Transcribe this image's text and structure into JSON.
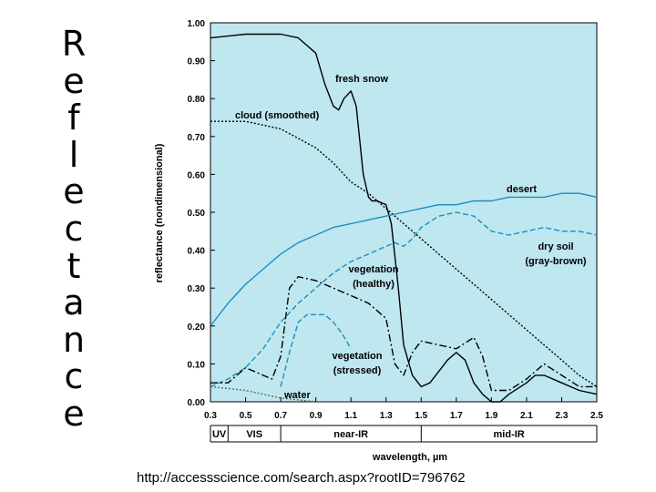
{
  "slide": {
    "title_letters": [
      "R",
      "e",
      "f",
      "l",
      "e",
      "c",
      "t",
      "a",
      "n",
      "c",
      "e"
    ],
    "source_url": "http://accessscience.com/search.aspx?rootID=796762"
  },
  "chart_data": {
    "type": "line",
    "title": "",
    "xlabel": "wavelength, µm",
    "ylabel": "reflectance (nondimensional)",
    "xlim": [
      0.3,
      2.5
    ],
    "ylim": [
      0.0,
      1.0
    ],
    "x_ticks": [
      "0.3",
      "0.5",
      "0.7",
      "0.9",
      "1.1",
      "1.3",
      "1.5",
      "1.7",
      "1.9",
      "2.1",
      "2.3",
      "2.5"
    ],
    "y_ticks": [
      "0.00",
      "0.10",
      "0.20",
      "0.30",
      "0.40",
      "0.50",
      "0.60",
      "0.70",
      "0.80",
      "0.90",
      "1.00"
    ],
    "bands": [
      {
        "label": "UV",
        "from": 0.3,
        "to": 0.4
      },
      {
        "label": "VIS",
        "from": 0.4,
        "to": 0.7
      },
      {
        "label": "near-IR",
        "from": 0.7,
        "to": 1.5
      },
      {
        "label": "mid-IR",
        "from": 1.5,
        "to": 2.5
      }
    ],
    "series": [
      {
        "name": "fresh snow",
        "label_lines": [
          "fresh snow"
        ],
        "color": "#000000",
        "style": "solid",
        "points": [
          [
            0.3,
            0.96
          ],
          [
            0.5,
            0.97
          ],
          [
            0.7,
            0.97
          ],
          [
            0.8,
            0.96
          ],
          [
            0.9,
            0.92
          ],
          [
            0.95,
            0.84
          ],
          [
            1.0,
            0.78
          ],
          [
            1.03,
            0.77
          ],
          [
            1.06,
            0.8
          ],
          [
            1.1,
            0.82
          ],
          [
            1.13,
            0.78
          ],
          [
            1.17,
            0.6
          ],
          [
            1.2,
            0.54
          ],
          [
            1.22,
            0.53
          ],
          [
            1.25,
            0.53
          ],
          [
            1.3,
            0.52
          ],
          [
            1.33,
            0.47
          ],
          [
            1.37,
            0.3
          ],
          [
            1.4,
            0.15
          ],
          [
            1.45,
            0.07
          ],
          [
            1.5,
            0.04
          ],
          [
            1.55,
            0.05
          ],
          [
            1.65,
            0.11
          ],
          [
            1.7,
            0.13
          ],
          [
            1.75,
            0.11
          ],
          [
            1.8,
            0.05
          ],
          [
            1.85,
            0.02
          ],
          [
            1.9,
            0.0
          ],
          [
            1.95,
            0.0
          ],
          [
            2.0,
            0.02
          ],
          [
            2.1,
            0.05
          ],
          [
            2.15,
            0.07
          ],
          [
            2.2,
            0.07
          ],
          [
            2.3,
            0.05
          ],
          [
            2.4,
            0.03
          ],
          [
            2.5,
            0.02
          ]
        ]
      },
      {
        "name": "cloud (smoothed)",
        "label_lines": [
          "cloud (smoothed)"
        ],
        "color": "#000000",
        "style": "dotted",
        "points": [
          [
            0.3,
            0.74
          ],
          [
            0.5,
            0.74
          ],
          [
            0.7,
            0.72
          ],
          [
            0.9,
            0.67
          ],
          [
            1.0,
            0.63
          ],
          [
            1.1,
            0.58
          ],
          [
            1.2,
            0.55
          ],
          [
            1.3,
            0.51
          ],
          [
            1.4,
            0.47
          ],
          [
            1.5,
            0.43
          ],
          [
            1.6,
            0.39
          ],
          [
            1.7,
            0.35
          ],
          [
            1.8,
            0.31
          ],
          [
            1.9,
            0.27
          ],
          [
            2.0,
            0.23
          ],
          [
            2.1,
            0.19
          ],
          [
            2.2,
            0.15
          ],
          [
            2.3,
            0.11
          ],
          [
            2.4,
            0.07
          ],
          [
            2.5,
            0.04
          ]
        ]
      },
      {
        "name": "desert",
        "label_lines": [
          "desert"
        ],
        "color": "#1a8ec0",
        "style": "solid",
        "points": [
          [
            0.3,
            0.2
          ],
          [
            0.4,
            0.26
          ],
          [
            0.5,
            0.31
          ],
          [
            0.6,
            0.35
          ],
          [
            0.7,
            0.39
          ],
          [
            0.8,
            0.42
          ],
          [
            0.9,
            0.44
          ],
          [
            1.0,
            0.46
          ],
          [
            1.1,
            0.47
          ],
          [
            1.2,
            0.48
          ],
          [
            1.3,
            0.49
          ],
          [
            1.4,
            0.5
          ],
          [
            1.5,
            0.51
          ],
          [
            1.6,
            0.52
          ],
          [
            1.7,
            0.52
          ],
          [
            1.8,
            0.53
          ],
          [
            1.9,
            0.53
          ],
          [
            2.0,
            0.54
          ],
          [
            2.1,
            0.54
          ],
          [
            2.2,
            0.54
          ],
          [
            2.3,
            0.55
          ],
          [
            2.4,
            0.55
          ],
          [
            2.5,
            0.54
          ]
        ]
      },
      {
        "name": "dry soil (gray-brown)",
        "label_lines": [
          "dry soil",
          "(gray-brown)"
        ],
        "color": "#1a8ec0",
        "style": "dashed",
        "points": [
          [
            0.3,
            0.04
          ],
          [
            0.4,
            0.06
          ],
          [
            0.5,
            0.09
          ],
          [
            0.6,
            0.14
          ],
          [
            0.7,
            0.21
          ],
          [
            0.8,
            0.26
          ],
          [
            0.9,
            0.3
          ],
          [
            1.0,
            0.34
          ],
          [
            1.1,
            0.37
          ],
          [
            1.2,
            0.39
          ],
          [
            1.3,
            0.41
          ],
          [
            1.35,
            0.42
          ],
          [
            1.4,
            0.41
          ],
          [
            1.45,
            0.43
          ],
          [
            1.5,
            0.46
          ],
          [
            1.6,
            0.49
          ],
          [
            1.7,
            0.5
          ],
          [
            1.8,
            0.49
          ],
          [
            1.9,
            0.45
          ],
          [
            2.0,
            0.44
          ],
          [
            2.1,
            0.45
          ],
          [
            2.2,
            0.46
          ],
          [
            2.3,
            0.45
          ],
          [
            2.4,
            0.45
          ],
          [
            2.5,
            0.44
          ]
        ]
      },
      {
        "name": "vegetation (healthy)",
        "label_lines": [
          "vegetation",
          "(healthy)"
        ],
        "color": "#000000",
        "style": "dashdot",
        "points": [
          [
            0.3,
            0.05
          ],
          [
            0.4,
            0.05
          ],
          [
            0.45,
            0.07
          ],
          [
            0.5,
            0.09
          ],
          [
            0.55,
            0.08
          ],
          [
            0.6,
            0.07
          ],
          [
            0.65,
            0.06
          ],
          [
            0.7,
            0.12
          ],
          [
            0.75,
            0.3
          ],
          [
            0.8,
            0.33
          ],
          [
            0.9,
            0.32
          ],
          [
            1.0,
            0.3
          ],
          [
            1.1,
            0.28
          ],
          [
            1.2,
            0.26
          ],
          [
            1.3,
            0.22
          ],
          [
            1.35,
            0.1
          ],
          [
            1.4,
            0.07
          ],
          [
            1.45,
            0.13
          ],
          [
            1.5,
            0.16
          ],
          [
            1.6,
            0.15
          ],
          [
            1.7,
            0.14
          ],
          [
            1.8,
            0.17
          ],
          [
            1.85,
            0.12
          ],
          [
            1.9,
            0.03
          ],
          [
            2.0,
            0.03
          ],
          [
            2.1,
            0.06
          ],
          [
            2.2,
            0.1
          ],
          [
            2.3,
            0.07
          ],
          [
            2.4,
            0.04
          ],
          [
            2.5,
            0.04
          ]
        ]
      },
      {
        "name": "vegetation (stressed)",
        "label_lines": [
          "vegetation",
          "(stressed)"
        ],
        "color": "#1a8ec0",
        "style": "dashed",
        "points": [
          [
            0.7,
            0.04
          ],
          [
            0.75,
            0.13
          ],
          [
            0.8,
            0.21
          ],
          [
            0.85,
            0.23
          ],
          [
            0.9,
            0.23
          ],
          [
            0.95,
            0.23
          ],
          [
            1.0,
            0.21
          ],
          [
            1.05,
            0.18
          ],
          [
            1.1,
            0.14
          ]
        ]
      },
      {
        "name": "water",
        "label_lines": [
          "water"
        ],
        "color": "#666666",
        "style": "dotted",
        "points": [
          [
            0.3,
            0.04
          ],
          [
            0.4,
            0.035
          ],
          [
            0.5,
            0.03
          ],
          [
            0.6,
            0.02
          ],
          [
            0.7,
            0.01
          ],
          [
            0.8,
            0.005
          ],
          [
            0.9,
            0.0
          ],
          [
            1.1,
            0.0
          ]
        ]
      }
    ]
  }
}
